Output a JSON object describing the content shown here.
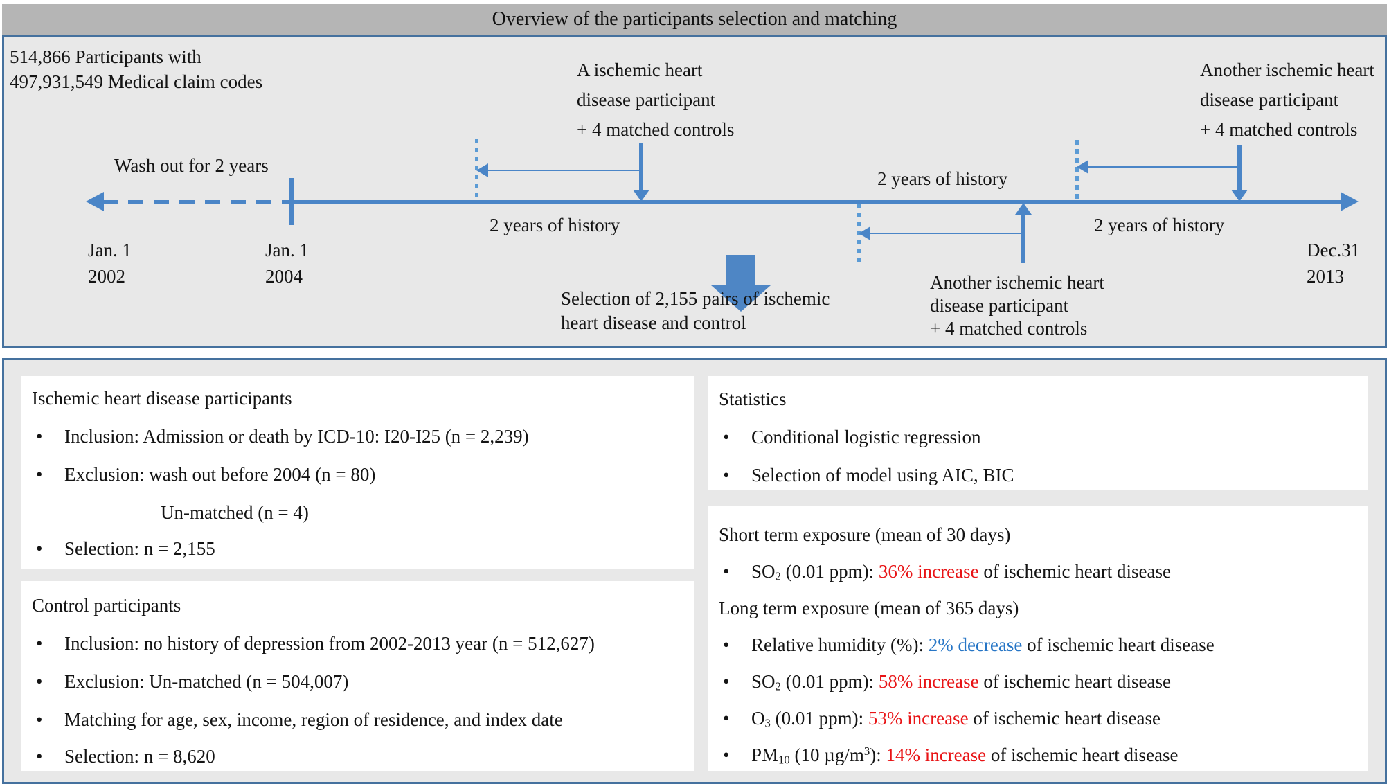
{
  "title_bar": "Overview of the participants selection and matching",
  "bullet_glyph": "•",
  "colors": {
    "accent_blue": "#4a85c7",
    "dotted_blue": "#5b9bd5",
    "panel_border_blue": "#45719e",
    "titlebar_gray": "#b5b5b5",
    "panel_gray": "#e8e8e8",
    "increase_red": "#e81416",
    "decrease_blue": "#2776c6"
  },
  "timeline": {
    "participants_note": [
      "514,866 Participants with",
      "497,931,549 Medical claim codes"
    ],
    "washout_label": "Wash out for 2 years",
    "case_first": [
      "A ischemic heart",
      "disease participant",
      "+ 4 matched controls"
    ],
    "case_top_right": [
      "Another ischemic heart",
      "disease participant",
      "+ 4 matched controls"
    ],
    "case_middle": [
      "Another ischemic heart",
      "disease participant",
      "+ 4 matched controls"
    ],
    "history_label_1": "2 years of history",
    "history_label_2": "2 years of history",
    "history_label_3": "2 years of history",
    "selection_note": [
      "Selection of 2,155 pairs of ischemic",
      "heart disease and control"
    ],
    "date_start": [
      "Jan. 1",
      "2002"
    ],
    "date_index": [
      "Jan. 1",
      "2004"
    ],
    "date_end": [
      "Dec.31",
      "2013"
    ]
  },
  "boxes": {
    "ihd": {
      "title": "Ischemic heart disease participants",
      "bullet_1": "Inclusion: Admission or death by ICD-10: I20-I25 (n = 2,239)",
      "bullet_2": "Exclusion: wash out before 2004 (n = 80)",
      "bullet_2b": "Un-matched (n = 4)",
      "bullet_3": "Selection: n = 2,155"
    },
    "control": {
      "title": "Control participants",
      "bullet_1": "Inclusion: no history of depression from 2002-2013 year (n = 512,627)",
      "bullet_2": "Exclusion: Un-matched (n = 504,007)",
      "bullet_3": "Matching for age, sex, income, region of residence, and index date",
      "bullet_4": "Selection: n = 8,620"
    },
    "statistics": {
      "title": "Statistics",
      "bullet_1": "Conditional logistic regression",
      "bullet_2": "Selection of model using AIC, BIC"
    },
    "exposure": {
      "heading_short": "Short term exposure (mean of 30 days)",
      "heading_long": "Long term exposure (mean of 365 days)",
      "bullet_so2_short": [
        {
          "t": "SO"
        },
        {
          "t": "2",
          "s": "sub"
        },
        {
          "t": " (0.01 ppm): "
        },
        {
          "t": "36% increase",
          "c": "red"
        },
        {
          "t": " of ischemic heart disease"
        }
      ],
      "bullet_rh": [
        {
          "t": "Relative humidity (%): "
        },
        {
          "t": "2% decrease",
          "c": "blue"
        },
        {
          "t": " of ischemic heart disease"
        }
      ],
      "bullet_so2_long": [
        {
          "t": "SO"
        },
        {
          "t": "2",
          "s": "sub"
        },
        {
          "t": " (0.01 ppm): "
        },
        {
          "t": "58% increase",
          "c": "red"
        },
        {
          "t": " of ischemic heart disease"
        }
      ],
      "bullet_o3": [
        {
          "t": "O"
        },
        {
          "t": "3",
          "s": "sub"
        },
        {
          "t": " (0.01 ppm): "
        },
        {
          "t": "53% increase",
          "c": "red"
        },
        {
          "t": " of ischemic heart disease"
        }
      ],
      "bullet_pm10": [
        {
          "t": "PM"
        },
        {
          "t": "10",
          "s": "sub"
        },
        {
          "t": " (10 µg/m"
        },
        {
          "t": "3",
          "s": "sup"
        },
        {
          "t": "): "
        },
        {
          "t": "14% increase",
          "c": "red"
        },
        {
          "t": " of ischemic heart disease"
        }
      ]
    }
  }
}
